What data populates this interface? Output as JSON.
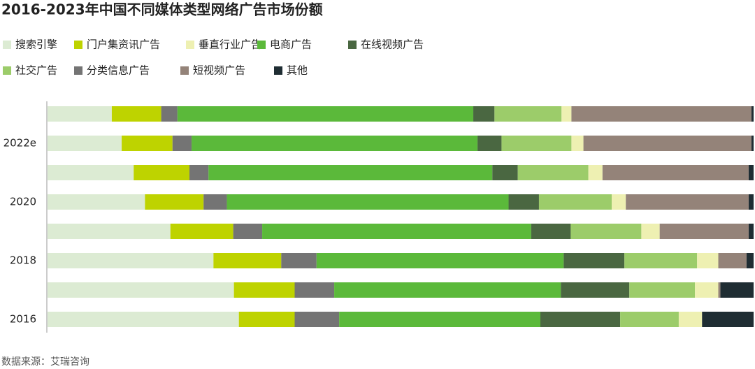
{
  "chart_data": {
    "type": "stacked_bar_horizontal",
    "title": "2016-2023年中国不同媒体类型网络广告市场份额",
    "source": "数据来源：艾瑞咨询",
    "categories": [
      null,
      "2022e",
      null,
      "2020",
      null,
      "2018",
      null,
      "2016"
    ],
    "xlim": [
      0,
      100
    ],
    "series": [
      {
        "name": "搜索引擎",
        "color": "#dcebd3",
        "values": [
          9.1,
          10.5,
          12.2,
          13.8,
          17.4,
          23.5,
          26.4,
          27.1
        ]
      },
      {
        "name": "门户集资讯广告",
        "color": "#bed300",
        "values": [
          7.0,
          7.2,
          7.9,
          8.3,
          8.9,
          9.6,
          8.6,
          7.9
        ]
      },
      {
        "name": "分类信息广告",
        "color": "#747474",
        "values": [
          2.3,
          2.7,
          2.7,
          3.3,
          4.1,
          5.0,
          5.6,
          6.3
        ]
      },
      {
        "name": "电商广告",
        "color": "#5bb93a",
        "values": [
          41.9,
          40.5,
          40.2,
          39.9,
          38.1,
          35.0,
          32.1,
          28.5
        ]
      },
      {
        "name": "在线视频广告",
        "color": "#4a6741",
        "values": [
          3.0,
          3.4,
          3.6,
          4.3,
          5.6,
          8.6,
          9.7,
          11.3
        ]
      },
      {
        "name": "社交广告",
        "color": "#9ccc6a",
        "values": [
          9.5,
          9.9,
          10.0,
          10.3,
          10.0,
          10.3,
          9.3,
          8.3
        ]
      },
      {
        "name": "垂直行业广告",
        "color": "#eef0b2",
        "values": [
          1.4,
          1.7,
          2.0,
          2.0,
          2.6,
          3.0,
          3.3,
          3.3
        ]
      },
      {
        "name": "短视频广告",
        "color": "#948379",
        "values": [
          25.5,
          23.8,
          20.7,
          17.4,
          12.6,
          4.0,
          0.3,
          0
        ]
      },
      {
        "name": "其他",
        "color": "#1f2d33",
        "values": [
          0.3,
          0.3,
          0.7,
          0.7,
          0.7,
          1.0,
          4.7,
          7.3
        ]
      }
    ]
  }
}
